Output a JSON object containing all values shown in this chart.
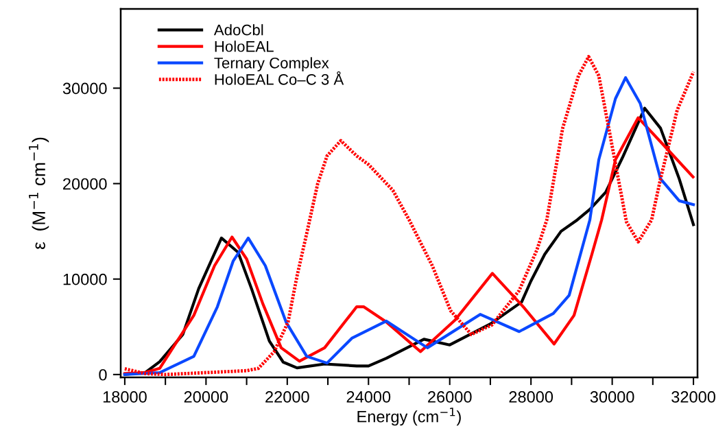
{
  "chart_data": {
    "type": "line",
    "xlabel": "Energy (cm$^{−1}$)",
    "ylabel": "ε  (M$^{−1}$ cm$^{−1}$)",
    "xlim": [
      17900,
      32100
    ],
    "ylim": [
      -300,
      38300
    ],
    "xticks": [
      18000,
      {
        "value": 19000,
        "label": null
      },
      20000,
      {
        "value": 21000,
        "label": null
      },
      22000,
      {
        "value": 23000,
        "label": null
      },
      24000,
      {
        "value": 25000,
        "label": null
      },
      26000,
      {
        "value": 27000,
        "label": null
      },
      28000,
      {
        "value": 29000,
        "label": null
      },
      30000,
      {
        "value": 31000,
        "label": null
      },
      32000
    ],
    "yticks": [
      0,
      10000,
      20000,
      30000
    ],
    "grid": false,
    "legend": "top left",
    "series": [
      {
        "name": "AdoCbl",
        "color": "#000000",
        "line_style": "solid",
        "x": [
          18000,
          18500,
          18860,
          19430,
          19820,
          20380,
          20790,
          21120,
          21560,
          21900,
          22240,
          22920,
          23710,
          24000,
          24440,
          25365,
          26000,
          27000,
          27770,
          28000,
          28340,
          28740,
          29140,
          29450,
          29840,
          30250,
          30800,
          31190,
          31650,
          32000
        ],
        "values": [
          0,
          200,
          1350,
          4200,
          9000,
          14300,
          12800,
          9000,
          3500,
          1300,
          700,
          1100,
          900,
          900,
          1700,
          3700,
          3100,
          5300,
          7600,
          9800,
          12600,
          15000,
          16200,
          17300,
          19100,
          22700,
          27900,
          25800,
          20500,
          15700
        ]
      },
      {
        "name": "HoloEAL",
        "color": "#ff0000",
        "line_style": "solid",
        "x": [
          18000,
          18500,
          18860,
          19700,
          20210,
          20640,
          21000,
          21400,
          21850,
          22300,
          22920,
          23710,
          23880,
          24440,
          25280,
          26130,
          27050,
          27810,
          28570,
          29060,
          29500,
          29740,
          30080,
          30640,
          31360,
          31990
        ],
        "values": [
          100,
          200,
          650,
          6200,
          11400,
          14400,
          12100,
          7400,
          2800,
          1400,
          2800,
          7100,
          7100,
          5500,
          2400,
          5700,
          10600,
          7100,
          3200,
          6200,
          12600,
          16200,
          22500,
          26900,
          23600,
          20700
        ]
      },
      {
        "name": "Ternary Complex",
        "color": "#0a48ff",
        "line_style": "solid",
        "x": [
          18000,
          18860,
          19700,
          20280,
          20670,
          21040,
          21460,
          21970,
          22480,
          22980,
          23590,
          24440,
          25450,
          26750,
          27710,
          28550,
          28940,
          29450,
          29670,
          30080,
          30330,
          30690,
          31190,
          31650,
          32000
        ],
        "values": [
          0,
          200,
          1900,
          7100,
          11900,
          14300,
          11400,
          5500,
          1900,
          1200,
          3800,
          5600,
          2800,
          6300,
          4500,
          6400,
          8300,
          16200,
          22500,
          28900,
          31100,
          28400,
          20500,
          18200,
          17800
        ]
      },
      {
        "name": "HoloEAL Co–C 3 Å",
        "color": "#ff0000",
        "line_style": "dotted",
        "x": [
          18000,
          18500,
          19000,
          20000,
          21000,
          21290,
          21680,
          22020,
          22240,
          22480,
          22750,
          22980,
          23320,
          23710,
          24000,
          24600,
          25000,
          25570,
          26020,
          26530,
          27040,
          27710,
          28150,
          28390,
          28780,
          29170,
          29420,
          29670,
          29960,
          30350,
          30640,
          30970,
          31190,
          31600,
          32000
        ],
        "values": [
          600,
          100,
          0,
          200,
          400,
          650,
          2400,
          5500,
          10300,
          14800,
          20000,
          22900,
          24500,
          22900,
          22000,
          19300,
          16200,
          11400,
          6700,
          4200,
          5200,
          8800,
          13100,
          16200,
          25800,
          31300,
          33300,
          31300,
          24800,
          16000,
          13900,
          16200,
          20500,
          27700,
          31700
        ]
      }
    ]
  }
}
